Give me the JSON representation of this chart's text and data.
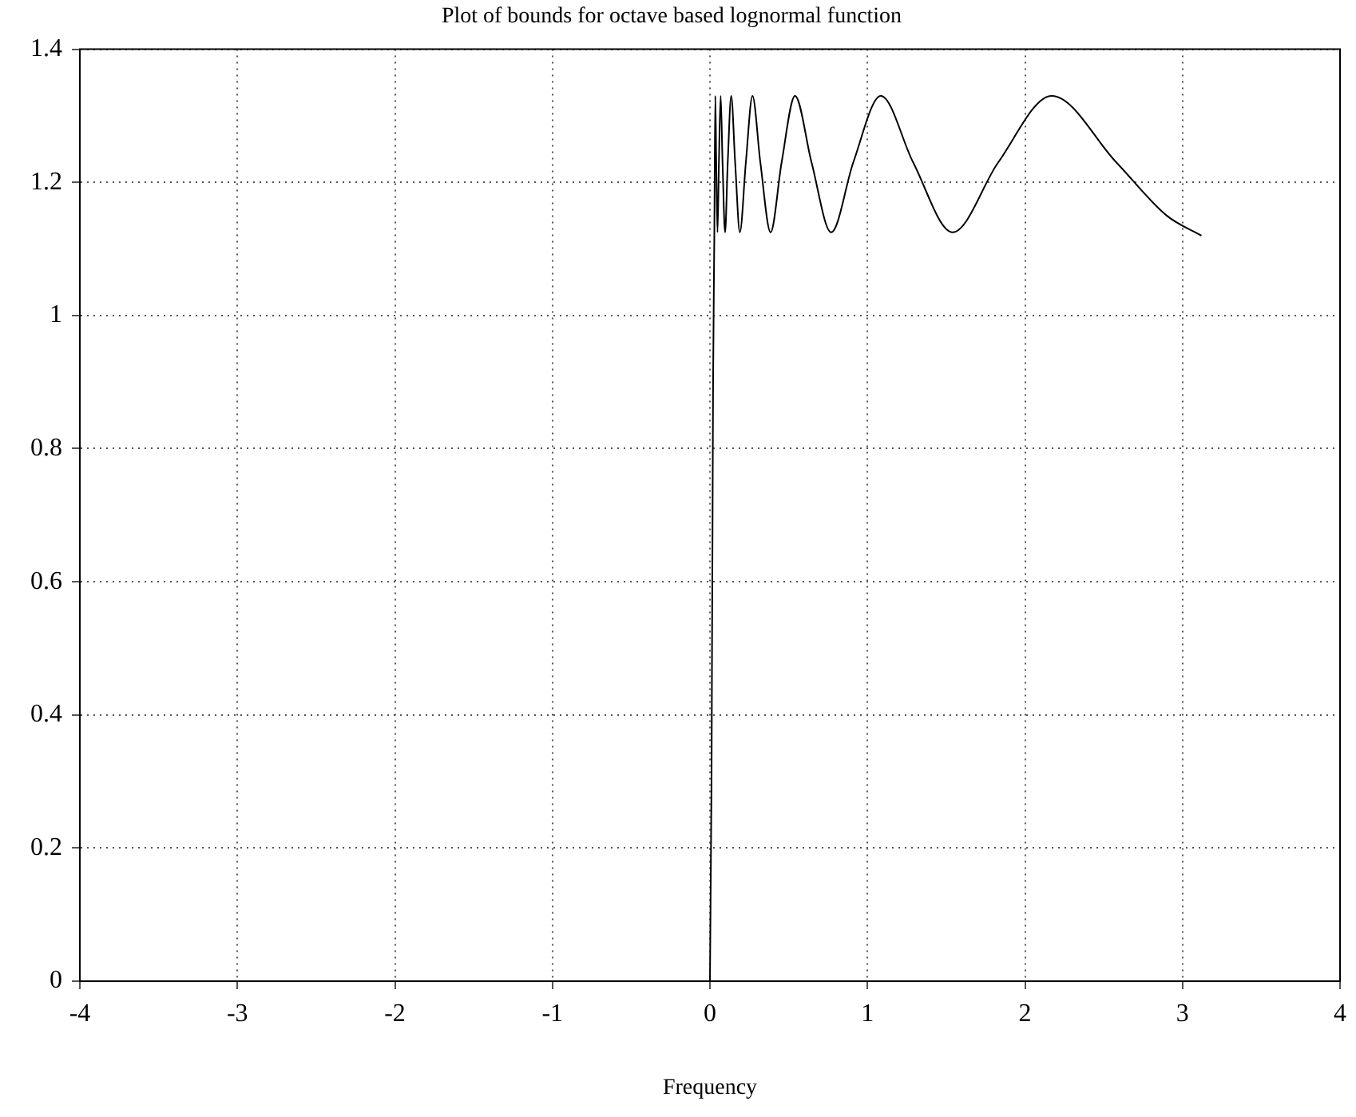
{
  "chart_data": {
    "type": "line",
    "title": "Plot of bounds for octave based lognormal function",
    "xlabel": "Frequency",
    "xlim": [
      -4,
      4
    ],
    "xticks": [
      -4,
      -3,
      -2,
      -1,
      0,
      1,
      2,
      3,
      4
    ],
    "ylim": [
      0,
      1.4
    ],
    "yticks": [
      0,
      0.2,
      0.4,
      0.6,
      0.8,
      1,
      1.2,
      1.4
    ],
    "grid": true,
    "legend": false,
    "marker": "none",
    "line_style": "solid",
    "series": [
      {
        "color": "#000000",
        "x": [
          -3.14,
          -1.5,
          0,
          0.01,
          0.02,
          0.028,
          0.034,
          0.04,
          0.048,
          0.057,
          0.068,
          0.08,
          0.096,
          0.113,
          0.135,
          0.16,
          0.19,
          0.228,
          0.27,
          0.32,
          0.385,
          0.455,
          0.54,
          0.645,
          0.77,
          0.91,
          1.085,
          1.29,
          1.54,
          1.83,
          2.17,
          2.58,
          2.9,
          3.12
        ],
        "values": [
          0,
          0,
          0,
          0.3,
          0.9,
          1.125,
          1.33,
          1.23,
          1.125,
          1.23,
          1.33,
          1.23,
          1.125,
          1.23,
          1.33,
          1.23,
          1.125,
          1.23,
          1.33,
          1.23,
          1.125,
          1.23,
          1.33,
          1.23,
          1.125,
          1.23,
          1.33,
          1.23,
          1.125,
          1.23,
          1.33,
          1.23,
          1.15,
          1.12
        ]
      }
    ]
  }
}
